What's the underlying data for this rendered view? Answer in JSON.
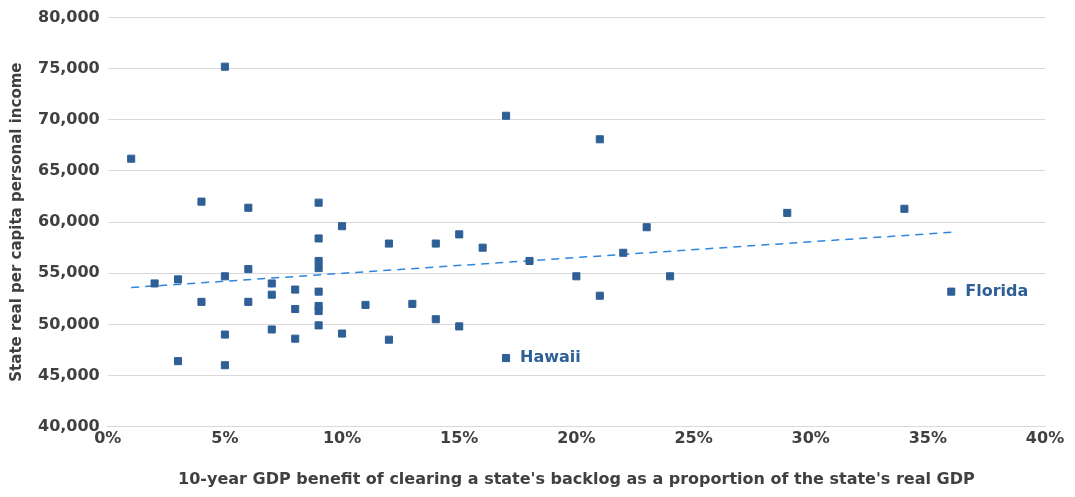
{
  "chart_data": {
    "type": "scatter",
    "xlabel": "10-year GDP benefit of clearing a state's backlog as a proportion of the state's real GDP",
    "ylabel": "State real per capita personal income",
    "xlim": [
      0,
      40
    ],
    "xticks": [
      {
        "value": 0,
        "label": "0%"
      },
      {
        "value": 5,
        "label": "5%"
      },
      {
        "value": 10,
        "label": "10%"
      },
      {
        "value": 15,
        "label": "15%"
      },
      {
        "value": 20,
        "label": "20%"
      },
      {
        "value": 25,
        "label": "25%"
      },
      {
        "value": 30,
        "label": "30%"
      },
      {
        "value": 35,
        "label": "35%"
      },
      {
        "value": 40,
        "label": "40%"
      }
    ],
    "ylim": [
      40000,
      80000
    ],
    "yticks": [
      {
        "value": 40000,
        "label": "40,000"
      },
      {
        "value": 45000,
        "label": "45,000"
      },
      {
        "value": 50000,
        "label": "50,000"
      },
      {
        "value": 55000,
        "label": "55,000"
      },
      {
        "value": 60000,
        "label": "60,000"
      },
      {
        "value": 65000,
        "label": "65,000"
      },
      {
        "value": 70000,
        "label": "70,000"
      },
      {
        "value": 75000,
        "label": "75,000"
      },
      {
        "value": 80000,
        "label": "80,000"
      }
    ],
    "grid": "y",
    "legend": false,
    "marker": "square",
    "series": [
      {
        "type": "scatter",
        "color": "#2e5f96",
        "x": [
          5,
          1,
          4,
          6,
          9,
          10,
          9,
          12,
          14,
          9,
          9,
          6,
          5,
          3,
          2,
          7,
          8,
          9,
          7,
          4,
          6,
          11,
          13,
          8,
          9,
          9,
          14,
          9,
          7,
          10,
          5,
          8,
          12,
          3,
          5,
          17,
          21,
          23,
          15,
          16,
          18,
          22,
          20,
          24,
          21,
          15,
          17,
          29,
          34,
          36
        ],
        "values": [
          75200,
          66200,
          62000,
          61400,
          61900,
          59600,
          58400,
          57900,
          57900,
          56200,
          55500,
          55400,
          54700,
          54400,
          54000,
          54000,
          53400,
          53200,
          52900,
          52200,
          52200,
          51900,
          52000,
          51500,
          51800,
          51300,
          50500,
          49900,
          49500,
          49100,
          49000,
          48600,
          48500,
          46400,
          46000,
          70400,
          68100,
          59500,
          58800,
          57500,
          56200,
          57000,
          54700,
          54700,
          52800,
          49800,
          46700,
          60900,
          61300,
          53200
        ]
      },
      {
        "type": "line",
        "color": "#2e86de",
        "line_style": "dashed",
        "marker": "none",
        "x": [
          1,
          36
        ],
        "values": [
          53600,
          59000
        ]
      }
    ],
    "annotations": [
      {
        "text": "Hawaii",
        "x": 17,
        "y": 46700
      },
      {
        "text": "Florida",
        "x": 36,
        "y": 53200
      }
    ]
  }
}
